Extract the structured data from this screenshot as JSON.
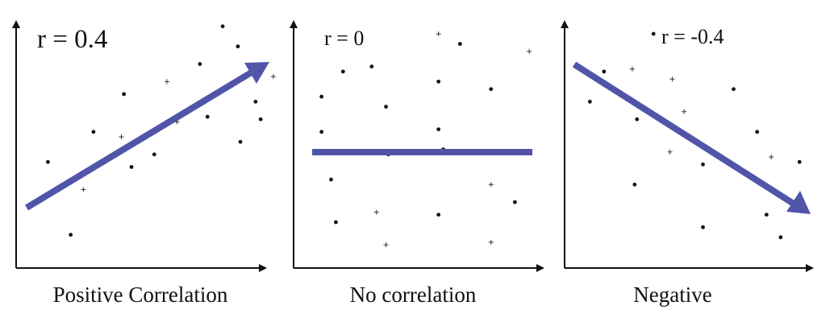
{
  "chart_data": [
    {
      "type": "scatter",
      "panel": "positive",
      "annotation": "r = 0.4",
      "caption": "Positive Correlation",
      "trend": "up-right",
      "accent_color": "#5055a8",
      "dots": [
        [
          1.0,
          4.0
        ],
        [
          2.8,
          5.2
        ],
        [
          4.0,
          6.7
        ],
        [
          5.2,
          4.3
        ],
        [
          4.3,
          3.8
        ],
        [
          7.0,
          7.9
        ],
        [
          7.3,
          5.8
        ],
        [
          7.9,
          9.4
        ],
        [
          8.5,
          8.6
        ],
        [
          9.2,
          6.4
        ],
        [
          9.4,
          5.7
        ],
        [
          8.6,
          4.8
        ],
        [
          1.9,
          1.1
        ]
      ],
      "crosses": [
        [
          2.4,
          2.9
        ],
        [
          3.9,
          5.0
        ],
        [
          5.7,
          7.2
        ],
        [
          6.1,
          5.6
        ],
        [
          9.9,
          7.4
        ]
      ]
    },
    {
      "type": "scatter",
      "panel": "none",
      "annotation": "r = 0",
      "caption": "No correlation",
      "trend": "flat",
      "accent_color": "#5055a8",
      "dots": [
        [
          0.9,
          6.6
        ],
        [
          1.8,
          7.6
        ],
        [
          3.0,
          7.8
        ],
        [
          0.9,
          5.2
        ],
        [
          3.6,
          6.2
        ],
        [
          5.8,
          7.2
        ],
        [
          6.7,
          8.7
        ],
        [
          8.0,
          6.9
        ],
        [
          5.8,
          5.3
        ],
        [
          3.7,
          4.3
        ],
        [
          6.0,
          4.5
        ],
        [
          1.3,
          3.3
        ],
        [
          1.5,
          1.6
        ],
        [
          5.8,
          1.9
        ],
        [
          9.0,
          2.4
        ]
      ],
      "crosses": [
        [
          5.8,
          9.1
        ],
        [
          9.6,
          8.4
        ],
        [
          3.2,
          2.0
        ],
        [
          8.0,
          3.1
        ],
        [
          3.6,
          0.7
        ],
        [
          8.0,
          0.8
        ]
      ]
    },
    {
      "type": "scatter",
      "panel": "negative",
      "annotation": "r = -0.4",
      "caption": "Negative",
      "trend": "down-right",
      "accent_color": "#5055a8",
      "dots": [
        [
          0.8,
          6.4
        ],
        [
          1.4,
          7.6
        ],
        [
          3.5,
          9.1
        ],
        [
          2.8,
          5.7
        ],
        [
          6.9,
          6.9
        ],
        [
          5.6,
          3.9
        ],
        [
          2.7,
          3.1
        ],
        [
          7.9,
          5.2
        ],
        [
          9.7,
          4.0
        ],
        [
          8.3,
          1.9
        ],
        [
          5.6,
          1.4
        ],
        [
          8.9,
          1.0
        ]
      ],
      "crosses": [
        [
          2.6,
          7.7
        ],
        [
          4.3,
          7.3
        ],
        [
          4.8,
          6.0
        ],
        [
          4.2,
          4.4
        ],
        [
          8.5,
          4.2
        ]
      ]
    }
  ]
}
